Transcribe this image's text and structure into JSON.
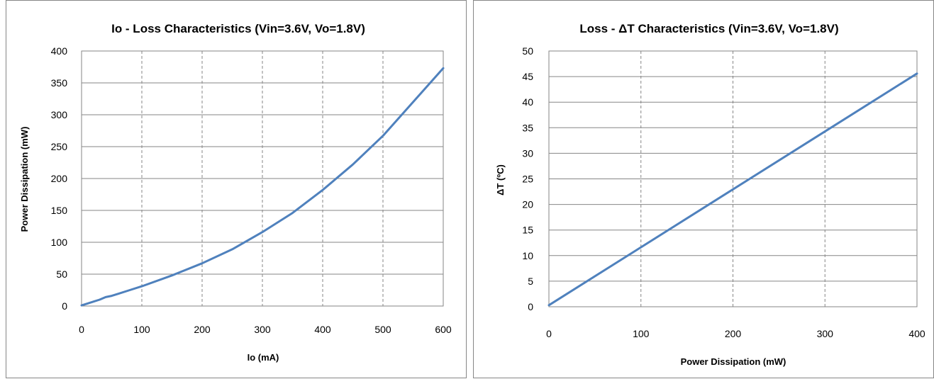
{
  "chart_data": [
    {
      "type": "line",
      "title": "Io - Loss Characteristics (Vin=3.6V, Vo=1.8V)",
      "xlabel": "Io (mA)",
      "ylabel": "Power Dissipation (mW)",
      "xlim": [
        0,
        600
      ],
      "ylim": [
        0,
        400
      ],
      "x_ticks": [
        0,
        100,
        200,
        300,
        400,
        500,
        600
      ],
      "y_ticks": [
        0,
        50,
        100,
        150,
        200,
        250,
        300,
        350,
        400
      ],
      "grid": {
        "horizontal": "solid",
        "vertical": "dashed"
      },
      "series": [
        {
          "color": "#4f81bd",
          "x": [
            0,
            10,
            20,
            30,
            40,
            50,
            60,
            80,
            100,
            150,
            200,
            250,
            300,
            350,
            400,
            450,
            500,
            550,
            600
          ],
          "y": [
            1,
            4,
            7,
            10,
            14,
            16,
            19,
            25,
            31,
            48,
            67,
            89,
            116,
            146,
            182,
            222,
            267,
            320,
            373
          ]
        }
      ]
    },
    {
      "type": "line",
      "title": "Loss - ΔT Characteristics (Vin=3.6V, Vo=1.8V)",
      "xlabel": "Power Dissipation  (mW)",
      "ylabel": "ΔT (ºC)",
      "xlim": [
        0,
        400
      ],
      "ylim": [
        0,
        50
      ],
      "x_ticks": [
        0,
        100,
        200,
        300,
        400
      ],
      "y_ticks": [
        0,
        5,
        10,
        15,
        20,
        25,
        30,
        35,
        40,
        45,
        50
      ],
      "grid": {
        "horizontal": "solid",
        "vertical": "dashed"
      },
      "series": [
        {
          "color": "#4f81bd",
          "x": [
            0,
            400
          ],
          "y": [
            0.3,
            45.6
          ]
        }
      ]
    }
  ]
}
